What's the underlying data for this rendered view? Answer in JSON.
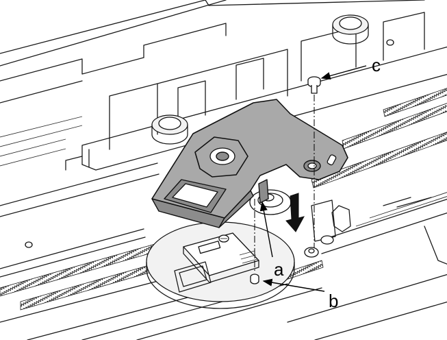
{
  "callouts": {
    "a": "a",
    "b": "b",
    "c": "c"
  },
  "colors": {
    "plate_fill": "#a9a9a9",
    "line": "#111111",
    "background": "#ffffff"
  }
}
